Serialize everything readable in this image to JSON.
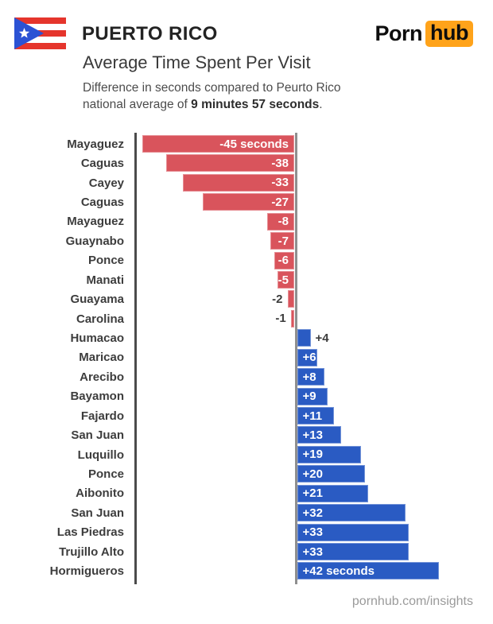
{
  "header": {
    "country": "PUERTO RICO",
    "logo_part1": "Porn",
    "logo_part2": "hub",
    "logo_accent_color": "#FFA31A",
    "chart_title": "Average Time Spent Per Visit",
    "description_line1": "Difference in seconds compared to Peurto Rico",
    "description_line2_prefix": "national average of ",
    "description_line2_bold": "9 minutes 57 seconds",
    "description_line2_suffix": "."
  },
  "flag": {
    "red": "#E5352C",
    "blue": "#2B52D4",
    "star": "#FFFFFF"
  },
  "chart_data": {
    "type": "bar",
    "orientation": "horizontal",
    "unit": "seconds",
    "title": "Average Time Spent Per Visit",
    "categories": [
      "Mayaguez",
      "Caguas",
      "Cayey",
      "Caguas",
      "Mayaguez",
      "Guaynabo",
      "Ponce",
      "Manati",
      "Guayama",
      "Carolina",
      "Humacao",
      "Maricao",
      "Arecibo",
      "Bayamon",
      "Fajardo",
      "San Juan",
      "Luquillo",
      "Ponce",
      "Aibonito",
      "San Juan",
      "Las Piedras",
      "Trujillo Alto",
      "Hormigueros"
    ],
    "values": [
      -45,
      -38,
      -33,
      -27,
      -8,
      -7,
      -6,
      -5,
      -2,
      -1,
      4,
      6,
      8,
      9,
      11,
      13,
      19,
      20,
      21,
      32,
      33,
      33,
      42
    ],
    "value_labels": [
      "-45 seconds",
      "-38",
      "-33",
      "-27",
      "-8",
      "-7",
      "-6",
      "-5",
      "-2",
      "-1",
      "+4",
      "+6",
      "+8",
      "+9",
      "+11",
      "+13",
      "+19",
      "+20",
      "+21",
      "+32",
      "+33",
      "+33",
      "+42 seconds"
    ],
    "negative_color": "#D9545C",
    "positive_color": "#2A5BC3",
    "xlim": [
      -47,
      43
    ],
    "grid": false,
    "legend": false,
    "baseline": 0
  },
  "footer": {
    "url": "pornhub.com/insights"
  }
}
